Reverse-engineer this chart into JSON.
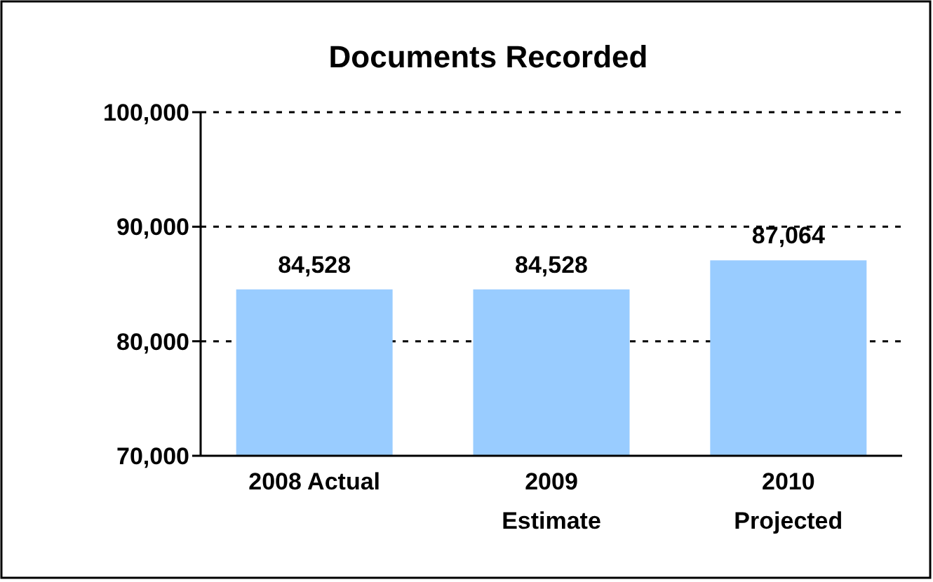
{
  "chart_data": {
    "type": "bar",
    "title": "Documents Recorded",
    "categories": [
      "2008 Actual",
      "2009 Estimate",
      "2010 Projected"
    ],
    "values": [
      84528,
      84528,
      87064
    ],
    "color": "#99ccff",
    "ylim": [
      70000,
      100000
    ],
    "yticks": [
      {
        "value": 70000,
        "label": "70,000"
      },
      {
        "value": 80000,
        "label": "80,000"
      },
      {
        "value": 90000,
        "label": "90,000"
      },
      {
        "value": 100000,
        "label": "100,000"
      }
    ],
    "grid": "y",
    "value_labels": [
      "84,528",
      "84,528",
      "87,064"
    ]
  }
}
